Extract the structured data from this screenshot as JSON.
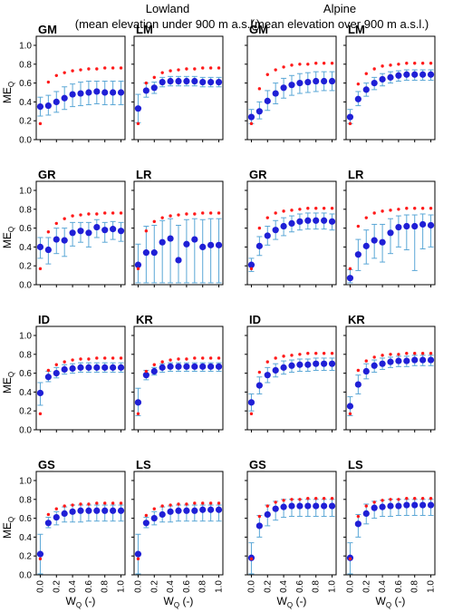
{
  "header": {
    "groups": [
      {
        "title": "Lowland",
        "subtitle": "(mean elevation under 900 m a.s.l.)"
      },
      {
        "title": "Alpine",
        "subtitle": "(mean elevation over 900 m a.s.l.)"
      }
    ]
  },
  "axes": {
    "ylabel": "ME",
    "ylabel_sub": "Q",
    "xlabel": "W",
    "xlabel_sub": "Q",
    "xlabel_suffix": " (-)",
    "ylim": [
      0.0,
      1.0
    ],
    "xlim": [
      -0.05,
      1.05
    ],
    "yticks": [
      "0.0",
      "0.2",
      "0.4",
      "0.6",
      "0.8",
      "1.0"
    ],
    "xticks": [
      "0.0",
      "0.2",
      "0.4",
      "0.6",
      "0.8",
      "1.0"
    ],
    "grid": false
  },
  "colors": {
    "mean_marker": "#1f1fd6",
    "error_bar": "#5aa7d6",
    "reference_marker": "#ff1a1a",
    "frame": "#000000"
  },
  "chart_data": [
    {
      "type": "scatter",
      "title": "GM",
      "x": [
        0.0,
        0.1,
        0.2,
        0.3,
        0.4,
        0.5,
        0.6,
        0.7,
        0.8,
        0.9,
        1.0
      ],
      "mean": [
        0.35,
        0.36,
        0.4,
        0.44,
        0.48,
        0.49,
        0.5,
        0.51,
        0.5,
        0.5,
        0.5
      ],
      "lower": [
        0.25,
        0.26,
        0.29,
        0.32,
        0.35,
        0.36,
        0.37,
        0.38,
        0.37,
        0.37,
        0.37
      ],
      "upper": [
        0.45,
        0.47,
        0.51,
        0.56,
        0.59,
        0.61,
        0.62,
        0.62,
        0.62,
        0.62,
        0.62
      ],
      "reference": [
        0.17,
        0.61,
        0.68,
        0.71,
        0.73,
        0.74,
        0.75,
        0.75,
        0.76,
        0.76,
        0.76
      ]
    },
    {
      "type": "scatter",
      "title": "LM",
      "x": [
        0.0,
        0.1,
        0.2,
        0.3,
        0.4,
        0.5,
        0.6,
        0.7,
        0.8,
        0.9,
        1.0
      ],
      "mean": [
        0.33,
        0.52,
        0.55,
        0.61,
        0.62,
        0.62,
        0.62,
        0.62,
        0.61,
        0.61,
        0.61
      ],
      "lower": [
        0.18,
        0.45,
        0.49,
        0.56,
        0.57,
        0.57,
        0.57,
        0.57,
        0.56,
        0.56,
        0.56
      ],
      "upper": [
        0.48,
        0.6,
        0.61,
        0.66,
        0.67,
        0.67,
        0.67,
        0.67,
        0.66,
        0.66,
        0.66
      ],
      "reference": [
        0.17,
        0.6,
        0.66,
        0.71,
        0.73,
        0.74,
        0.75,
        0.75,
        0.76,
        0.76,
        0.76
      ]
    },
    {
      "type": "scatter",
      "title": "GM",
      "x": [
        0.0,
        0.1,
        0.2,
        0.3,
        0.4,
        0.5,
        0.6,
        0.7,
        0.8,
        0.9,
        1.0
      ],
      "mean": [
        0.24,
        0.3,
        0.41,
        0.49,
        0.55,
        0.58,
        0.6,
        0.61,
        0.62,
        0.62,
        0.62
      ],
      "lower": [
        0.17,
        0.22,
        0.31,
        0.38,
        0.44,
        0.47,
        0.49,
        0.5,
        0.51,
        0.52,
        0.52
      ],
      "upper": [
        0.32,
        0.4,
        0.52,
        0.6,
        0.65,
        0.68,
        0.7,
        0.71,
        0.72,
        0.72,
        0.72
      ],
      "reference": [
        0.17,
        0.54,
        0.69,
        0.74,
        0.77,
        0.79,
        0.8,
        0.8,
        0.81,
        0.81,
        0.81
      ]
    },
    {
      "type": "scatter",
      "title": "LM",
      "x": [
        0.0,
        0.1,
        0.2,
        0.3,
        0.4,
        0.5,
        0.6,
        0.7,
        0.8,
        0.9,
        1.0
      ],
      "mean": [
        0.24,
        0.43,
        0.53,
        0.6,
        0.64,
        0.66,
        0.68,
        0.69,
        0.69,
        0.69,
        0.69
      ],
      "lower": [
        0.17,
        0.36,
        0.46,
        0.53,
        0.57,
        0.6,
        0.62,
        0.63,
        0.63,
        0.63,
        0.63
      ],
      "upper": [
        0.32,
        0.51,
        0.6,
        0.66,
        0.7,
        0.72,
        0.73,
        0.74,
        0.74,
        0.74,
        0.74
      ],
      "reference": [
        0.17,
        0.59,
        0.7,
        0.75,
        0.78,
        0.79,
        0.8,
        0.81,
        0.81,
        0.81,
        0.81
      ]
    },
    {
      "type": "scatter",
      "title": "GR",
      "x": [
        0.0,
        0.1,
        0.2,
        0.3,
        0.4,
        0.5,
        0.6,
        0.7,
        0.8,
        0.9,
        1.0
      ],
      "mean": [
        0.4,
        0.37,
        0.48,
        0.47,
        0.55,
        0.57,
        0.55,
        0.61,
        0.58,
        0.59,
        0.57
      ],
      "lower": [
        0.28,
        0.22,
        0.33,
        0.3,
        0.41,
        0.45,
        0.4,
        0.5,
        0.45,
        0.48,
        0.46
      ],
      "upper": [
        0.5,
        0.5,
        0.6,
        0.6,
        0.66,
        0.66,
        0.66,
        0.69,
        0.66,
        0.67,
        0.66
      ],
      "reference": [
        0.17,
        0.56,
        0.65,
        0.7,
        0.73,
        0.74,
        0.75,
        0.75,
        0.76,
        0.76,
        0.76
      ]
    },
    {
      "type": "scatter",
      "title": "LR",
      "x": [
        0.0,
        0.1,
        0.2,
        0.3,
        0.4,
        0.5,
        0.6,
        0.7,
        0.8,
        0.9,
        1.0
      ],
      "mean": [
        0.21,
        0.34,
        0.34,
        0.45,
        0.49,
        0.26,
        0.43,
        0.48,
        0.4,
        0.42,
        0.42
      ],
      "lower": [
        0.02,
        0.02,
        0.02,
        0.02,
        0.02,
        0.02,
        0.02,
        0.02,
        0.02,
        0.02,
        0.02
      ],
      "upper": [
        0.43,
        0.62,
        0.63,
        0.68,
        0.7,
        0.63,
        0.69,
        0.7,
        0.69,
        0.7,
        0.7
      ],
      "reference": [
        0.17,
        0.57,
        0.67,
        0.71,
        0.73,
        0.74,
        0.75,
        0.75,
        0.76,
        0.76,
        0.76
      ]
    },
    {
      "type": "scatter",
      "title": "GR",
      "x": [
        0.0,
        0.1,
        0.2,
        0.3,
        0.4,
        0.5,
        0.6,
        0.7,
        0.8,
        0.9,
        1.0
      ],
      "mean": [
        0.21,
        0.41,
        0.52,
        0.58,
        0.62,
        0.65,
        0.67,
        0.68,
        0.68,
        0.68,
        0.67
      ],
      "lower": [
        0.14,
        0.31,
        0.42,
        0.48,
        0.52,
        0.56,
        0.58,
        0.59,
        0.59,
        0.59,
        0.58
      ],
      "upper": [
        0.28,
        0.51,
        0.62,
        0.68,
        0.71,
        0.73,
        0.75,
        0.76,
        0.76,
        0.76,
        0.75
      ],
      "reference": [
        0.17,
        0.6,
        0.71,
        0.76,
        0.78,
        0.79,
        0.8,
        0.81,
        0.81,
        0.81,
        0.81
      ]
    },
    {
      "type": "scatter",
      "title": "LR",
      "x": [
        0.0,
        0.1,
        0.2,
        0.3,
        0.4,
        0.5,
        0.6,
        0.7,
        0.8,
        0.9,
        1.0
      ],
      "mean": [
        0.07,
        0.32,
        0.41,
        0.47,
        0.45,
        0.55,
        0.61,
        0.62,
        0.62,
        0.64,
        0.63
      ],
      "lower": [
        0.02,
        0.15,
        0.22,
        0.28,
        0.24,
        0.33,
        0.4,
        0.37,
        0.15,
        0.38,
        0.4
      ],
      "upper": [
        0.16,
        0.48,
        0.58,
        0.64,
        0.64,
        0.7,
        0.73,
        0.74,
        0.74,
        0.75,
        0.74
      ],
      "reference": [
        0.17,
        0.62,
        0.71,
        0.76,
        0.78,
        0.79,
        0.8,
        0.81,
        0.81,
        0.81,
        0.81
      ]
    },
    {
      "type": "scatter",
      "title": "ID",
      "x": [
        0.0,
        0.1,
        0.2,
        0.3,
        0.4,
        0.5,
        0.6,
        0.7,
        0.8,
        0.9,
        1.0
      ],
      "mean": [
        0.39,
        0.56,
        0.6,
        0.64,
        0.65,
        0.66,
        0.66,
        0.66,
        0.66,
        0.66,
        0.66
      ],
      "lower": [
        0.26,
        0.51,
        0.55,
        0.59,
        0.6,
        0.61,
        0.61,
        0.61,
        0.61,
        0.61,
        0.61
      ],
      "upper": [
        0.5,
        0.62,
        0.66,
        0.69,
        0.7,
        0.71,
        0.71,
        0.71,
        0.71,
        0.71,
        0.71
      ],
      "reference": [
        0.17,
        0.63,
        0.69,
        0.72,
        0.74,
        0.75,
        0.75,
        0.76,
        0.76,
        0.76,
        0.76
      ]
    },
    {
      "type": "scatter",
      "title": "KR",
      "x": [
        0.0,
        0.1,
        0.2,
        0.3,
        0.4,
        0.5,
        0.6,
        0.7,
        0.8,
        0.9,
        1.0
      ],
      "mean": [
        0.29,
        0.58,
        0.62,
        0.66,
        0.67,
        0.67,
        0.67,
        0.67,
        0.67,
        0.67,
        0.67
      ],
      "lower": [
        0.15,
        0.53,
        0.58,
        0.61,
        0.62,
        0.62,
        0.62,
        0.62,
        0.62,
        0.62,
        0.62
      ],
      "upper": [
        0.44,
        0.63,
        0.66,
        0.7,
        0.71,
        0.71,
        0.71,
        0.71,
        0.71,
        0.71,
        0.71
      ],
      "reference": [
        0.17,
        0.62,
        0.69,
        0.72,
        0.74,
        0.75,
        0.75,
        0.76,
        0.76,
        0.76,
        0.76
      ]
    },
    {
      "type": "scatter",
      "title": "ID",
      "x": [
        0.0,
        0.1,
        0.2,
        0.3,
        0.4,
        0.5,
        0.6,
        0.7,
        0.8,
        0.9,
        1.0
      ],
      "mean": [
        0.29,
        0.47,
        0.58,
        0.63,
        0.66,
        0.68,
        0.69,
        0.69,
        0.7,
        0.7,
        0.7
      ],
      "lower": [
        0.2,
        0.38,
        0.5,
        0.56,
        0.59,
        0.61,
        0.62,
        0.62,
        0.63,
        0.63,
        0.63
      ],
      "upper": [
        0.38,
        0.56,
        0.66,
        0.7,
        0.73,
        0.74,
        0.75,
        0.75,
        0.76,
        0.76,
        0.76
      ],
      "reference": [
        0.17,
        0.61,
        0.72,
        0.76,
        0.78,
        0.79,
        0.8,
        0.81,
        0.81,
        0.81,
        0.81
      ]
    },
    {
      "type": "scatter",
      "title": "KR",
      "x": [
        0.0,
        0.1,
        0.2,
        0.3,
        0.4,
        0.5,
        0.6,
        0.7,
        0.8,
        0.9,
        1.0
      ],
      "mean": [
        0.25,
        0.48,
        0.62,
        0.68,
        0.7,
        0.72,
        0.73,
        0.73,
        0.74,
        0.74,
        0.74
      ],
      "lower": [
        0.15,
        0.38,
        0.54,
        0.61,
        0.64,
        0.66,
        0.67,
        0.67,
        0.68,
        0.68,
        0.68
      ],
      "upper": [
        0.35,
        0.58,
        0.7,
        0.74,
        0.76,
        0.77,
        0.78,
        0.78,
        0.79,
        0.79,
        0.79
      ],
      "reference": [
        0.17,
        0.63,
        0.73,
        0.77,
        0.79,
        0.8,
        0.8,
        0.81,
        0.81,
        0.81,
        0.81
      ]
    },
    {
      "type": "scatter",
      "title": "GS",
      "x": [
        0.0,
        0.1,
        0.2,
        0.3,
        0.4,
        0.5,
        0.6,
        0.7,
        0.8,
        0.9,
        1.0
      ],
      "mean": [
        0.22,
        0.55,
        0.61,
        0.65,
        0.67,
        0.68,
        0.68,
        0.68,
        0.68,
        0.68,
        0.68
      ],
      "lower": [
        0.01,
        0.5,
        0.53,
        0.56,
        0.56,
        0.56,
        0.57,
        0.57,
        0.57,
        0.57,
        0.57
      ],
      "upper": [
        0.43,
        0.61,
        0.67,
        0.72,
        0.74,
        0.74,
        0.74,
        0.74,
        0.74,
        0.74,
        0.74
      ],
      "reference": [
        0.17,
        0.64,
        0.7,
        0.73,
        0.74,
        0.75,
        0.75,
        0.76,
        0.76,
        0.76,
        0.76
      ]
    },
    {
      "type": "scatter",
      "title": "LS",
      "x": [
        0.0,
        0.1,
        0.2,
        0.3,
        0.4,
        0.5,
        0.6,
        0.7,
        0.8,
        0.9,
        1.0
      ],
      "mean": [
        0.22,
        0.55,
        0.6,
        0.64,
        0.67,
        0.68,
        0.68,
        0.68,
        0.69,
        0.69,
        0.69
      ],
      "lower": [
        0.01,
        0.5,
        0.53,
        0.56,
        0.56,
        0.57,
        0.57,
        0.57,
        0.57,
        0.57,
        0.57
      ],
      "upper": [
        0.43,
        0.61,
        0.67,
        0.72,
        0.73,
        0.74,
        0.74,
        0.74,
        0.74,
        0.74,
        0.74
      ],
      "reference": [
        0.17,
        0.63,
        0.7,
        0.73,
        0.74,
        0.75,
        0.75,
        0.76,
        0.76,
        0.76,
        0.76
      ]
    },
    {
      "type": "scatter",
      "title": "GS",
      "x": [
        0.0,
        0.1,
        0.2,
        0.3,
        0.4,
        0.5,
        0.6,
        0.7,
        0.8,
        0.9,
        1.0
      ],
      "mean": [
        0.18,
        0.52,
        0.64,
        0.7,
        0.72,
        0.73,
        0.73,
        0.73,
        0.73,
        0.73,
        0.73
      ],
      "lower": [
        0.01,
        0.4,
        0.52,
        0.58,
        0.61,
        0.62,
        0.62,
        0.62,
        0.62,
        0.62,
        0.62
      ],
      "upper": [
        0.34,
        0.63,
        0.74,
        0.78,
        0.8,
        0.8,
        0.8,
        0.8,
        0.8,
        0.8,
        0.8
      ],
      "reference": [
        0.17,
        0.62,
        0.73,
        0.77,
        0.79,
        0.8,
        0.8,
        0.81,
        0.81,
        0.81,
        0.81
      ]
    },
    {
      "type": "scatter",
      "title": "LS",
      "x": [
        0.0,
        0.1,
        0.2,
        0.3,
        0.4,
        0.5,
        0.6,
        0.7,
        0.8,
        0.9,
        1.0
      ],
      "mean": [
        0.18,
        0.54,
        0.65,
        0.71,
        0.72,
        0.73,
        0.73,
        0.74,
        0.74,
        0.74,
        0.74
      ],
      "lower": [
        0.01,
        0.4,
        0.54,
        0.6,
        0.62,
        0.62,
        0.63,
        0.63,
        0.63,
        0.63,
        0.63
      ],
      "upper": [
        0.34,
        0.64,
        0.75,
        0.78,
        0.79,
        0.8,
        0.8,
        0.8,
        0.8,
        0.8,
        0.8
      ],
      "reference": [
        0.17,
        0.62,
        0.73,
        0.77,
        0.79,
        0.8,
        0.8,
        0.81,
        0.81,
        0.81,
        0.81
      ]
    }
  ]
}
